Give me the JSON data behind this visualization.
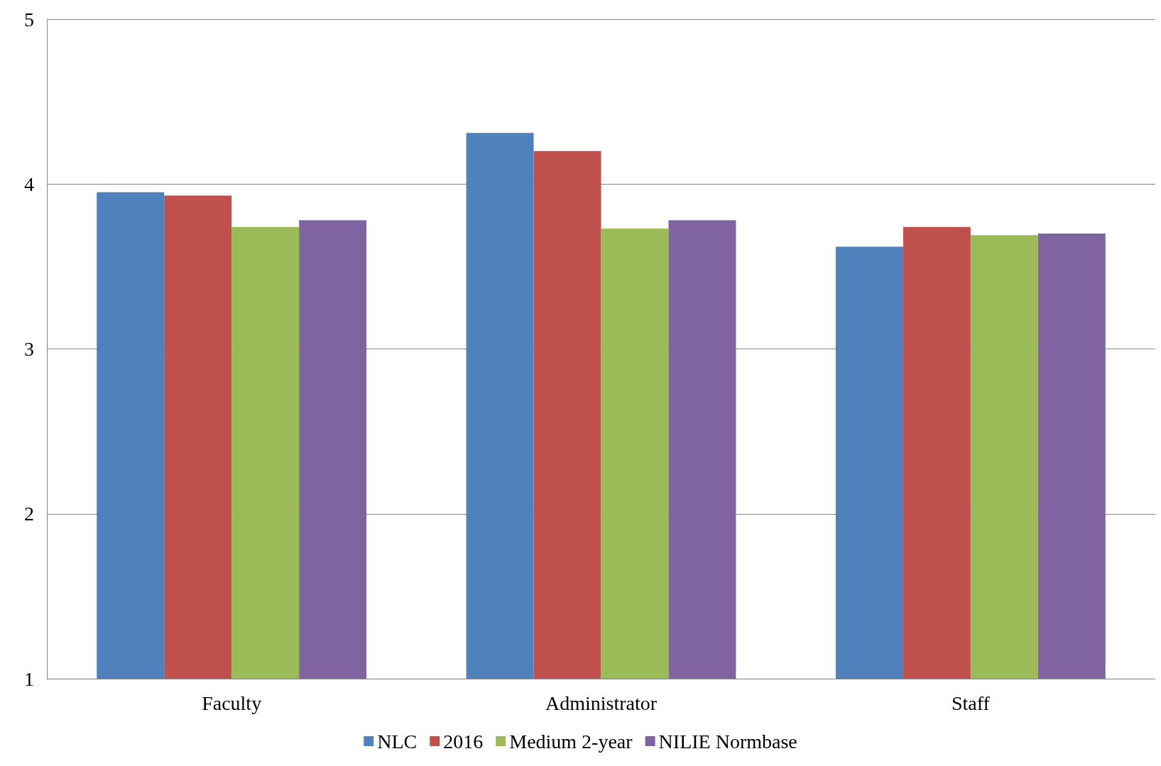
{
  "chart_data": {
    "type": "bar",
    "categories": [
      "Faculty",
      "Administrator",
      "Staff"
    ],
    "series": [
      {
        "name": "NLC",
        "color": "#4f81bd",
        "values": [
          3.95,
          4.31,
          3.62
        ]
      },
      {
        "name": "2016",
        "color": "#c0504d",
        "values": [
          3.93,
          4.2,
          3.74
        ]
      },
      {
        "name": "Medium 2-year",
        "color": "#9bbb59",
        "values": [
          3.74,
          3.73,
          3.69
        ]
      },
      {
        "name": "NILIE Normbase",
        "color": "#8064a2",
        "values": [
          3.78,
          3.78,
          3.7
        ]
      }
    ],
    "ylim": [
      1,
      5
    ],
    "yticks": [
      1,
      2,
      3,
      4,
      5
    ],
    "grid": "y",
    "legend": "bottom"
  }
}
